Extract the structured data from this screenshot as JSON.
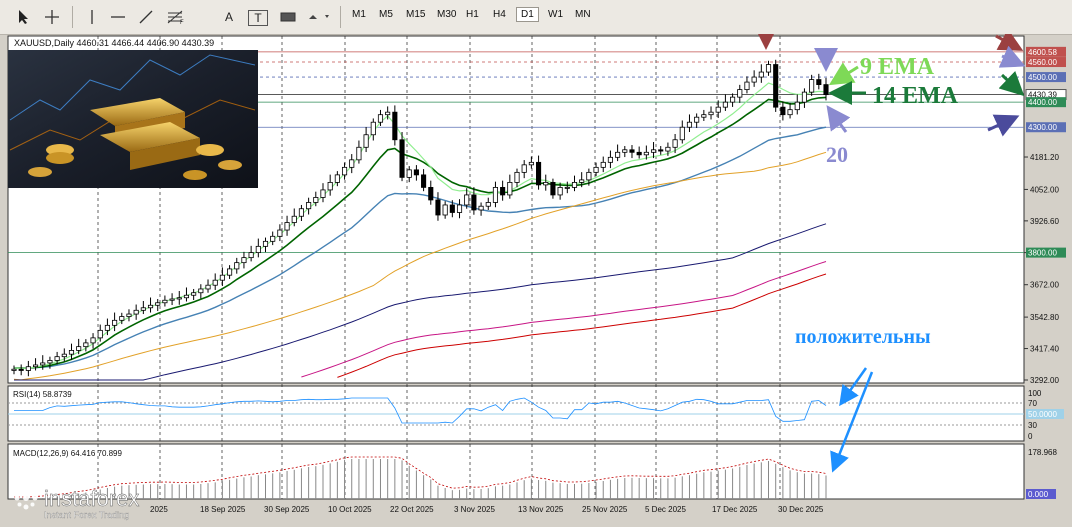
{
  "toolbar": {
    "timeframes": [
      "M1",
      "M5",
      "M15",
      "M30",
      "H1",
      "H4",
      "D1",
      "W1",
      "MN"
    ],
    "active_timeframe": "D1",
    "tools": [
      "cursor-icon",
      "crosshair-icon",
      "vertical-line-icon",
      "horizontal-line-icon",
      "trend-line-icon",
      "fibonacci-icon",
      "text-icon",
      "label-icon",
      "rectangle-icon",
      "shapes-icon"
    ],
    "text_tool_label": "A",
    "label_tool_label": "T"
  },
  "chart_data": {
    "type": "candlestick",
    "symbol_line": "XAUUSD,Daily  4460.31 4466.44 4406.90 4430.39",
    "ylim": [
      3292.0,
      4620.0
    ],
    "price_ticks": [
      "4181.20",
      "4052.00",
      "3926.60",
      "3800.00",
      "3672.00",
      "3542.80",
      "3417.40",
      "3292.00"
    ],
    "price_ticks_values": [
      4181.2,
      4052.0,
      3926.6,
      3800.0,
      3672.0,
      3542.8,
      3417.4,
      3292.0
    ],
    "price_labels": [
      {
        "text": "4600.58",
        "value": 4600.58,
        "color": "#c0504d"
      },
      {
        "text": "4560.00",
        "value": 4560.0,
        "color": "#c0504d"
      },
      {
        "text": "4500.00",
        "value": 4500.0,
        "color": "#5b6fb5"
      },
      {
        "text": "4430.39",
        "value": 4430.39,
        "color": "#222222"
      },
      {
        "text": "4400.00",
        "value": 4400.0,
        "color": "#2e8b57"
      },
      {
        "text": "4300.00",
        "value": 4300.0,
        "color": "#5b6fb5"
      },
      {
        "text": "3800.00",
        "value": 3800.0,
        "color": "#2e8b57"
      }
    ],
    "x_labels": [
      "18 Sep 2025",
      "30 Sep 2025",
      "10 Oct 2025",
      "22 Oct 2025",
      "3 Nov 2025",
      "13 Nov 2025",
      "25 Nov 2025",
      "5 Dec 2025",
      "17 Dec 2025",
      "30 Dec 2025"
    ],
    "x_labels_partial": "2025",
    "closes": [
      3335,
      3330,
      3345,
      3352,
      3360,
      3370,
      3385,
      3395,
      3410,
      3425,
      3440,
      3460,
      3490,
      3510,
      3530,
      3545,
      3555,
      3570,
      3580,
      3590,
      3600,
      3610,
      3615,
      3620,
      3630,
      3640,
      3655,
      3670,
      3690,
      3710,
      3735,
      3760,
      3780,
      3800,
      3825,
      3845,
      3865,
      3890,
      3920,
      3945,
      3975,
      4000,
      4020,
      4050,
      4080,
      4110,
      4140,
      4170,
      4220,
      4270,
      4320,
      4350,
      4360,
      4250,
      4100,
      4130,
      4110,
      4060,
      4010,
      3950,
      3990,
      3960,
      3990,
      4030,
      3970,
      3985,
      4000,
      4060,
      4030,
      4080,
      4120,
      4150,
      4160,
      4070,
      4080,
      4030,
      4060,
      4060,
      4080,
      4090,
      4120,
      4140,
      4160,
      4180,
      4200,
      4210,
      4200,
      4190,
      4200,
      4210,
      4205,
      4220,
      4250,
      4300,
      4320,
      4340,
      4350,
      4360,
      4380,
      4400,
      4420,
      4450,
      4480,
      4500,
      4520,
      4550,
      4380,
      4350,
      4370,
      4400,
      4440,
      4490,
      4470,
      4430
    ],
    "ema9": [
      3340,
      3338,
      3340,
      3344,
      3349,
      3356,
      3366,
      3376,
      3389,
      3404,
      3419,
      3437,
      3461,
      3484,
      3507,
      3526,
      3542,
      3557,
      3571,
      3584,
      3595,
      3606,
      3614,
      3621,
      3629,
      3638,
      3650,
      3665,
      3682,
      3701,
      3723,
      3746,
      3767,
      3786,
      3809,
      3829,
      3850,
      3872,
      3898,
      3923,
      3951,
      3977,
      4000,
      4027,
      4055,
      4084,
      4115,
      4144,
      4188,
      4236,
      4283,
      4320,
      4345,
      4312,
      4266,
      4234,
      4205,
      4173,
      4141,
      4096,
      4074,
      4052,
      4046,
      4048,
      4037,
      4031,
      4031,
      4040,
      4041,
      4047,
      4062,
      4080,
      4095,
      4090,
      4088,
      4078,
      4076,
      4073,
      4075,
      4079,
      4087,
      4100,
      4113,
      4128,
      4143,
      4157,
      4166,
      4171,
      4177,
      4183,
      4188,
      4195,
      4207,
      4224,
      4242,
      4262,
      4281,
      4296,
      4314,
      4333,
      4353,
      4377,
      4404,
      4429,
      4452,
      4476,
      4466,
      4451,
      4437,
      4431,
      4431,
      4439,
      4443,
      4441
    ],
    "ema14": [
      3340,
      3339,
      3340,
      3342,
      3345,
      3350,
      3357,
      3364,
      3374,
      3386,
      3398,
      3412,
      3431,
      3451,
      3471,
      3488,
      3503,
      3518,
      3532,
      3545,
      3557,
      3568,
      3577,
      3585,
      3594,
      3603,
      3614,
      3625,
      3640,
      3656,
      3673,
      3693,
      3711,
      3729,
      3749,
      3768,
      3788,
      3808,
      3830,
      3853,
      3877,
      3900,
      3922,
      3944,
      3968,
      3992,
      4016,
      4040,
      4072,
      4108,
      4145,
      4180,
      4210,
      4215,
      4194,
      4185,
      4175,
      4160,
      4141,
      4115,
      4097,
      4080,
      4068,
      4063,
      4053,
      4045,
      4039,
      4041,
      4039,
      4043,
      4050,
      4063,
      4076,
      4076,
      4077,
      4071,
      4070,
      4068,
      4068,
      4071,
      4077,
      4088,
      4098,
      4110,
      4122,
      4134,
      4142,
      4147,
      4154,
      4161,
      4167,
      4174,
      4184,
      4197,
      4213,
      4229,
      4246,
      4261,
      4278,
      4294,
      4311,
      4330,
      4351,
      4370,
      4390,
      4411,
      4407,
      4400,
      4393,
      4394,
      4400,
      4411,
      4417,
      4419
    ],
    "ema20": [
      3340,
      3339,
      3340,
      3341,
      3343,
      3346,
      3351,
      3356,
      3363,
      3371,
      3380,
      3390,
      3404,
      3418,
      3433,
      3446,
      3459,
      3472,
      3484,
      3495,
      3506,
      3516,
      3525,
      3534,
      3542,
      3551,
      3560,
      3570,
      3582,
      3595,
      3608,
      3623,
      3637,
      3651,
      3666,
      3681,
      3696,
      3712,
      3730,
      3748,
      3767,
      3785,
      3803,
      3822,
      3841,
      3861,
      3880,
      3899,
      3924,
      3951,
      3978,
      4004,
      4027,
      4036,
      4034,
      4035,
      4034,
      4030,
      4024,
      4016,
      4008,
      3999,
      3991,
      3985,
      3978,
      3971,
      3966,
      3964,
      3961,
      3960,
      3962,
      3967,
      3972,
      3976,
      3979,
      3980,
      3981,
      3983,
      3985,
      3987,
      3991,
      3998,
      4005,
      4013,
      4022,
      4031,
      4039,
      4045,
      4052,
      4058,
      4064,
      4071,
      4079,
      4088,
      4099,
      4110,
      4121,
      4132,
      4144,
      4157,
      4170,
      4184,
      4200,
      4216,
      4232,
      4248,
      4255,
      4260,
      4265,
      4270,
      4278,
      4286,
      4294,
      4300
    ]
  },
  "rsi": {
    "label": "RSI(14) 58.8739",
    "levels": [
      "100",
      "70",
      "30",
      "0"
    ],
    "current_label": "50.0000",
    "current": 58.87
  },
  "macd": {
    "label": "MACD(12,26,9) 64.416 70.899",
    "levels": [
      "178.968"
    ],
    "current_label": "0.000"
  },
  "annotations": {
    "ema9": "9 EMA",
    "ema14": "14 EMA",
    "ema20": "20",
    "positive": "положительны"
  },
  "watermark": {
    "brand": "instaforex",
    "tagline": "Instant Forex Trading"
  },
  "colors": {
    "candle_up": "#ffffff",
    "candle_down": "#000000",
    "ema9": "#90ee90",
    "ema14": "#006400",
    "ema20": "#4682b4",
    "ma50": "#e2a128",
    "ma100": "#191970",
    "ma200a": "#c71585",
    "ma200b": "#cc0000",
    "ema9_text": "#7ed957",
    "ema14_text": "#1b7a3a",
    "ema20_text": "#8a8ad0",
    "positive_text": "#1e90ff"
  }
}
